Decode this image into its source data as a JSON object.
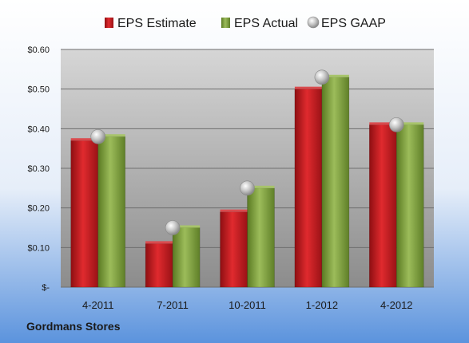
{
  "company": "Gordmans Stores",
  "chart_data": {
    "type": "bar",
    "categories": [
      "4-2011",
      "7-2011",
      "10-2011",
      "1-2012",
      "4-2012"
    ],
    "series": [
      {
        "name": "EPS Estimate",
        "values": [
          0.37,
          0.11,
          0.19,
          0.5,
          0.41
        ],
        "color": "#c0151b"
      },
      {
        "name": "EPS Actual",
        "values": [
          0.38,
          0.15,
          0.25,
          0.53,
          0.41
        ],
        "color": "#7a9a3a"
      }
    ],
    "markers": {
      "name": "EPS GAAP",
      "values": [
        0.38,
        0.15,
        0.25,
        0.53,
        0.41
      ],
      "color": "#b8b8b8"
    },
    "ylim": [
      0,
      0.6
    ],
    "yticks": [
      {
        "value": 0.6,
        "label": "$0.60"
      },
      {
        "value": 0.5,
        "label": "$0.50"
      },
      {
        "value": 0.4,
        "label": "$0.40"
      },
      {
        "value": 0.3,
        "label": "$0.30"
      },
      {
        "value": 0.2,
        "label": "$0.20"
      },
      {
        "value": 0.1,
        "label": "$0.10"
      },
      {
        "value": 0.0,
        "label": "$-"
      }
    ],
    "grid": true,
    "legend_position": "top",
    "colors": {
      "background_top": "#ffffff",
      "background_bottom": "#5b93dd",
      "plot_top": "#d4d4d4",
      "plot_bottom": "#8a8a8a"
    }
  }
}
